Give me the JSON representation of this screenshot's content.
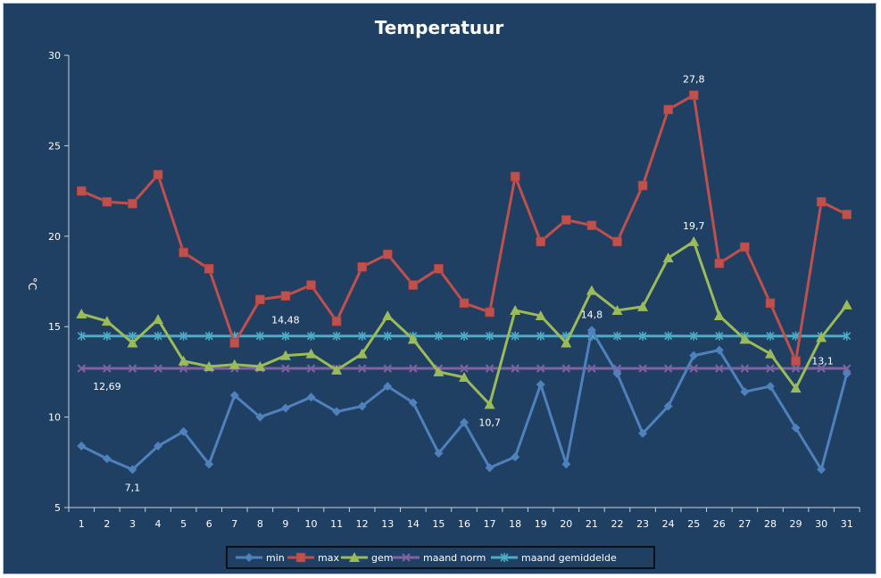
{
  "chart_data": {
    "type": "line",
    "title": "Temperatuur",
    "ylabel": "°C",
    "xlabel": "",
    "categories": [
      "1",
      "2",
      "3",
      "4",
      "5",
      "6",
      "7",
      "8",
      "9",
      "10",
      "11",
      "12",
      "13",
      "14",
      "15",
      "16",
      "17",
      "18",
      "19",
      "20",
      "21",
      "22",
      "23",
      "24",
      "25",
      "26",
      "27",
      "28",
      "29",
      "30",
      "31"
    ],
    "ylim": [
      5,
      30
    ],
    "yticks": [
      5,
      10,
      15,
      20,
      25,
      30
    ],
    "grid": false,
    "legend_position": "bottom",
    "series": [
      {
        "name": "min",
        "color": "#4f81bd",
        "marker": "diamond",
        "values": [
          8.4,
          7.7,
          7.1,
          8.4,
          9.2,
          7.4,
          11.2,
          10.0,
          10.5,
          11.1,
          10.3,
          10.6,
          11.7,
          10.8,
          8.0,
          9.7,
          7.2,
          7.8,
          11.8,
          7.4,
          14.8,
          12.4,
          9.1,
          10.6,
          13.4,
          13.7,
          11.4,
          11.7,
          9.4,
          7.1,
          12.4
        ]
      },
      {
        "name": "max",
        "color": "#c0504d",
        "marker": "square",
        "values": [
          22.5,
          21.9,
          21.8,
          23.4,
          19.1,
          18.2,
          14.1,
          16.5,
          16.7,
          17.3,
          15.3,
          18.3,
          19.0,
          17.3,
          18.2,
          16.3,
          15.8,
          23.3,
          19.7,
          20.9,
          20.6,
          19.7,
          22.8,
          27.0,
          27.8,
          18.5,
          19.4,
          16.3,
          13.1,
          21.9,
          21.2
        ]
      },
      {
        "name": "gem",
        "color": "#9bbb59",
        "marker": "triangle",
        "values": [
          15.7,
          15.3,
          14.1,
          15.4,
          13.1,
          12.8,
          12.9,
          12.8,
          13.4,
          13.5,
          12.6,
          13.5,
          15.6,
          14.3,
          12.5,
          12.2,
          10.7,
          15.9,
          15.6,
          14.1,
          17.0,
          15.9,
          16.1,
          18.8,
          19.7,
          15.6,
          14.3,
          13.5,
          11.6,
          14.4,
          16.2
        ]
      },
      {
        "name": "maand norm",
        "color": "#8064a2",
        "marker": "x",
        "values": [
          12.69,
          12.69,
          12.69,
          12.69,
          12.69,
          12.69,
          12.69,
          12.69,
          12.69,
          12.69,
          12.69,
          12.69,
          12.69,
          12.69,
          12.69,
          12.69,
          12.69,
          12.69,
          12.69,
          12.69,
          12.69,
          12.69,
          12.69,
          12.69,
          12.69,
          12.69,
          12.69,
          12.69,
          12.69,
          12.69,
          12.69
        ]
      },
      {
        "name": "maand gemiddelde",
        "color": "#4bacc6",
        "marker": "star",
        "values": [
          14.48,
          14.48,
          14.48,
          14.48,
          14.48,
          14.48,
          14.48,
          14.48,
          14.48,
          14.48,
          14.48,
          14.48,
          14.48,
          14.48,
          14.48,
          14.48,
          14.48,
          14.48,
          14.48,
          14.48,
          14.48,
          14.48,
          14.48,
          14.48,
          14.48,
          14.48,
          14.48,
          14.48,
          14.48,
          14.48,
          14.48
        ]
      }
    ],
    "data_labels": [
      {
        "series": "max",
        "day": 25,
        "text": "27,8"
      },
      {
        "series": "gem",
        "day": 25,
        "text": "19,7"
      },
      {
        "series": "min",
        "day": 21,
        "text": "14,8"
      },
      {
        "series": "maand gemiddelde",
        "day": 9,
        "text": "14,48"
      },
      {
        "series": "maand norm",
        "day": 2,
        "text": "12,69"
      },
      {
        "series": "min",
        "day": 3,
        "text": "7,1"
      },
      {
        "series": "gem",
        "day": 17,
        "text": "10,7"
      },
      {
        "series": "max",
        "day": 29,
        "text": "13,1"
      }
    ]
  }
}
